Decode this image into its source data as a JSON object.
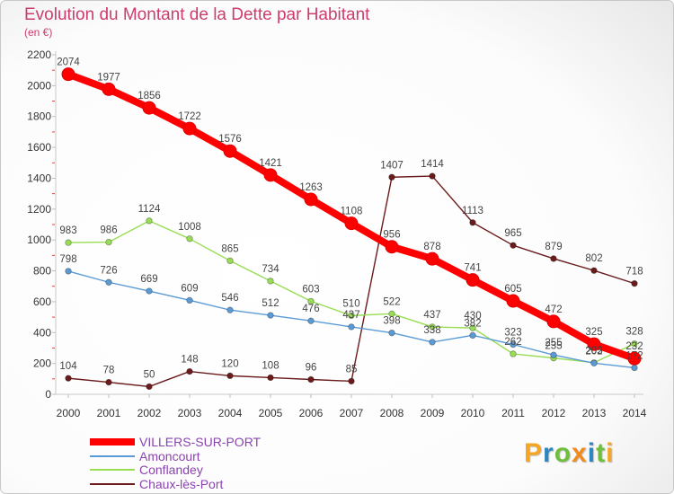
{
  "chart_data": {
    "type": "line",
    "title": "Evolution du Montant de la Dette par Habitant",
    "subtitle": "(en €)",
    "xlabel": "",
    "ylabel": "",
    "x": [
      2000,
      2001,
      2002,
      2003,
      2004,
      2005,
      2006,
      2007,
      2008,
      2009,
      2010,
      2011,
      2012,
      2013,
      2014
    ],
    "ylim": [
      0,
      2200
    ],
    "yticks": [
      0,
      200,
      400,
      600,
      800,
      1000,
      1200,
      1400,
      1600,
      1800,
      2000,
      2200
    ],
    "grid": false,
    "legend": "bottom-left",
    "series": [
      {
        "name": "VILLERS-SUR-PORT",
        "color": "#ff0000",
        "values": [
          2074,
          1977,
          1856,
          1722,
          1576,
          1421,
          1263,
          1108,
          956,
          878,
          741,
          605,
          472,
          325,
          232
        ]
      },
      {
        "name": "Amoncourt",
        "color": "#5b9bd5",
        "values": [
          798,
          726,
          669,
          609,
          546,
          512,
          476,
          437,
          398,
          338,
          382,
          323,
          255,
          202,
          172
        ]
      },
      {
        "name": "Conflandey",
        "color": "#99dd55",
        "values": [
          983,
          986,
          1124,
          1008,
          865,
          734,
          603,
          510,
          522,
          437,
          430,
          262,
          235,
          205,
          328
        ]
      },
      {
        "name": "Chaux-lès-Port",
        "color": "#6b1b1b",
        "values": [
          104,
          78,
          50,
          148,
          120,
          108,
          96,
          85,
          1407,
          1414,
          1113,
          965,
          879,
          802,
          718
        ]
      }
    ]
  },
  "logo": {
    "text": "Proxiti",
    "colors": [
      "#f5a623",
      "#2e86c1",
      "#6fbf3a",
      "#f08a1c",
      "#2e86c1",
      "#6fbf3a",
      "#f5a623"
    ]
  }
}
